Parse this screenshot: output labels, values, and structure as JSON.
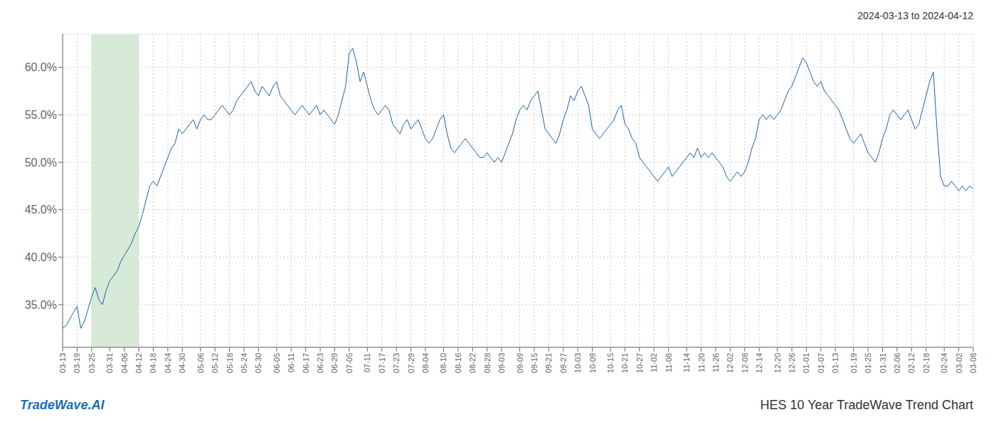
{
  "chart_data": {
    "type": "line",
    "title": "HES 10 Year TradeWave Trend Chart",
    "subtitle": "2024-03-13 to 2024-04-12",
    "annotations": [
      "TradeWave.AI"
    ],
    "color": "#1a5fa8",
    "grid": true,
    "highlight": {
      "start": "03-25",
      "end": "04-12",
      "color": "#d6ead7"
    },
    "ylim": [
      30.5,
      63.5
    ],
    "yticks": [
      {
        "value": 35.0,
        "label": "35.0%"
      },
      {
        "value": 40.0,
        "label": "40.0%"
      },
      {
        "value": 45.0,
        "label": "45.0%"
      },
      {
        "value": 50.0,
        "label": "50.0%"
      },
      {
        "value": 55.0,
        "label": "55.0%"
      },
      {
        "value": 60.0,
        "label": "60.0%"
      }
    ],
    "categories": [
      "03-13",
      null,
      null,
      null,
      "03-19",
      null,
      null,
      null,
      "03-25",
      null,
      null,
      null,
      null,
      "03-31",
      null,
      null,
      null,
      "04-06",
      null,
      null,
      null,
      "04-12",
      null,
      null,
      null,
      "04-18",
      null,
      null,
      null,
      "04-24",
      null,
      null,
      null,
      "04-30",
      null,
      null,
      null,
      null,
      "05-06",
      null,
      null,
      null,
      "05-12",
      null,
      null,
      null,
      "05-18",
      null,
      null,
      null,
      "05-24",
      null,
      null,
      null,
      "05-30",
      null,
      null,
      null,
      null,
      "06-05",
      null,
      null,
      null,
      "06-11",
      null,
      null,
      null,
      "06-17",
      null,
      null,
      null,
      "06-23",
      null,
      null,
      null,
      "06-29",
      null,
      null,
      null,
      "07-05",
      null,
      null,
      null,
      null,
      "07-11",
      null,
      null,
      null,
      "07-17",
      null,
      null,
      null,
      "07-23",
      null,
      null,
      null,
      "07-29",
      null,
      null,
      null,
      "08-04",
      null,
      null,
      null,
      null,
      "08-10",
      null,
      null,
      null,
      "08-16",
      null,
      null,
      null,
      "08-22",
      null,
      null,
      null,
      "08-28",
      null,
      null,
      null,
      "09-03",
      null,
      null,
      null,
      null,
      "09-09",
      null,
      null,
      null,
      "09-15",
      null,
      null,
      null,
      "09-21",
      null,
      null,
      null,
      "09-27",
      null,
      null,
      null,
      "10-03",
      null,
      null,
      null,
      "10-09",
      null,
      null,
      null,
      null,
      "10-15",
      null,
      null,
      null,
      "10-21",
      null,
      null,
      null,
      "10-27",
      null,
      null,
      null,
      "11-02",
      null,
      null,
      null,
      "11-08",
      null,
      null,
      null,
      null,
      "11-14",
      null,
      null,
      null,
      "11-20",
      null,
      null,
      null,
      "11-26",
      null,
      null,
      null,
      "12-02",
      null,
      null,
      null,
      "12-08",
      null,
      null,
      null,
      "12-14",
      null,
      null,
      null,
      null,
      "12-20",
      null,
      null,
      null,
      "12-26",
      null,
      null,
      null,
      "01-01",
      null,
      null,
      null,
      "01-07",
      null,
      null,
      null,
      "01-13",
      null,
      null,
      null,
      null,
      "01-19",
      null,
      null,
      null,
      "01-25",
      null,
      null,
      null,
      "01-31",
      null,
      null,
      null,
      "02-06",
      null,
      null,
      null,
      "02-12",
      null,
      null,
      null,
      "02-18",
      null,
      null,
      null,
      null,
      "02-24",
      null,
      null,
      null,
      "03-02",
      null,
      null,
      null,
      "03-08"
    ],
    "values": [
      32.5,
      32.8,
      33.5,
      34.2,
      34.8,
      32.5,
      33.2,
      34.5,
      35.8,
      36.8,
      35.5,
      35.0,
      36.5,
      37.5,
      38.0,
      38.5,
      39.5,
      40.2,
      40.8,
      41.5,
      42.5,
      43.2,
      44.5,
      46.0,
      47.5,
      48.0,
      47.5,
      48.5,
      49.5,
      50.5,
      51.5,
      52.0,
      53.5,
      53.0,
      53.5,
      54.0,
      54.5,
      53.5,
      54.5,
      55.0,
      54.5,
      54.5,
      55.0,
      55.5,
      56.0,
      55.5,
      55.0,
      55.5,
      56.5,
      57.0,
      57.5,
      58.0,
      58.5,
      57.5,
      57.0,
      58.0,
      57.5,
      57.0,
      58.0,
      58.5,
      57.0,
      56.5,
      56.0,
      55.5,
      55.0,
      55.5,
      56.0,
      55.5,
      55.0,
      55.5,
      56.0,
      55.0,
      55.5,
      55.0,
      54.5,
      54.0,
      55.0,
      56.5,
      58.0,
      61.5,
      62.0,
      60.5,
      58.5,
      59.5,
      58.0,
      56.5,
      55.5,
      55.0,
      55.5,
      56.0,
      55.5,
      54.0,
      53.5,
      53.0,
      54.0,
      54.5,
      53.5,
      54.0,
      54.5,
      53.5,
      52.5,
      52.0,
      52.5,
      53.5,
      54.5,
      55.0,
      53.0,
      51.5,
      51.0,
      51.5,
      52.0,
      52.5,
      52.0,
      51.5,
      51.0,
      50.5,
      50.5,
      51.0,
      50.5,
      50.0,
      50.5,
      50.0,
      51.0,
      52.0,
      53.0,
      54.5,
      55.5,
      56.0,
      55.5,
      56.5,
      57.0,
      57.5,
      55.5,
      53.5,
      53.0,
      52.5,
      52.0,
      53.0,
      54.5,
      55.5,
      57.0,
      56.5,
      57.5,
      58.0,
      57.0,
      56.0,
      53.5,
      53.0,
      52.5,
      53.0,
      53.5,
      54.0,
      54.5,
      55.5,
      56.0,
      54.0,
      53.5,
      52.5,
      52.0,
      50.5,
      50.0,
      49.5,
      49.0,
      48.5,
      48.0,
      48.5,
      49.0,
      49.5,
      48.5,
      49.0,
      49.5,
      50.0,
      50.5,
      51.0,
      50.5,
      51.5,
      50.5,
      51.0,
      50.5,
      51.0,
      50.5,
      50.0,
      49.5,
      48.5,
      48.0,
      48.5,
      49.0,
      48.5,
      49.0,
      50.0,
      51.5,
      52.5,
      54.5,
      55.0,
      54.5,
      55.0,
      54.5,
      55.0,
      55.5,
      56.5,
      57.5,
      58.0,
      59.0,
      60.0,
      61.0,
      60.5,
      59.5,
      58.5,
      58.0,
      58.5,
      57.5,
      57.0,
      56.5,
      56.0,
      55.5,
      54.5,
      53.5,
      52.5,
      52.0,
      52.5,
      53.0,
      52.0,
      51.0,
      50.5,
      50.0,
      51.0,
      52.5,
      53.5,
      55.0,
      55.5,
      55.0,
      54.5,
      55.0,
      55.5,
      54.5,
      53.5,
      54.0,
      55.5,
      57.0,
      58.5,
      59.5,
      53.5,
      48.5,
      47.5,
      47.5,
      48.0,
      47.5,
      47.0,
      47.5,
      47.0,
      47.5,
      47.2
    ]
  }
}
